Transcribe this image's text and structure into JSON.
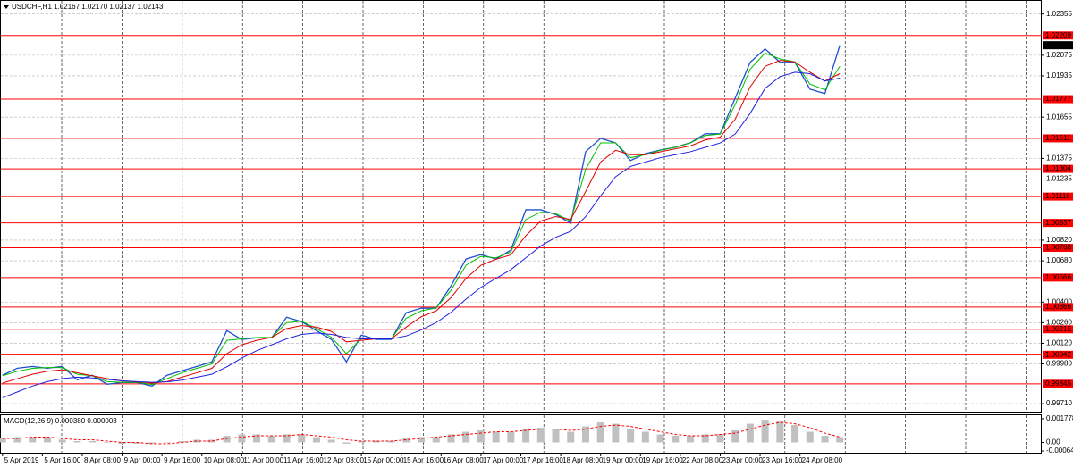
{
  "chart_data": [
    {
      "type": "line",
      "title": "USDCHF,H1  1.02167 1.02170 1.02137 1.02143",
      "x": [
        0,
        6,
        12,
        18,
        24,
        30,
        36,
        42,
        48,
        54,
        60,
        66,
        72,
        78,
        84,
        90,
        96,
        102,
        108,
        114,
        120,
        126,
        132,
        138,
        144,
        150,
        156,
        162,
        168,
        174,
        180,
        186,
        192,
        198,
        204,
        210,
        216,
        222,
        228,
        234,
        240,
        246,
        252,
        258,
        264,
        270,
        276,
        282,
        288,
        294,
        300,
        306,
        312,
        318,
        324,
        330,
        336
      ],
      "xlim": [
        -1,
        417
      ],
      "xticks": [
        {
          "value": 0,
          "label": "5 Apr 2019"
        },
        {
          "value": 16,
          "label": "5 Apr 16:00"
        },
        {
          "value": 32,
          "label": "8 Apr 08:00"
        },
        {
          "value": 48,
          "label": "9 Apr 00:00"
        },
        {
          "value": 64,
          "label": "9 Apr 16:00"
        },
        {
          "value": 80,
          "label": "10 Apr 08:00"
        },
        {
          "value": 96,
          "label": "11 Apr 00:00"
        },
        {
          "value": 112,
          "label": "11 Apr 16:00"
        },
        {
          "value": 128,
          "label": "12 Apr 08:00"
        },
        {
          "value": 144,
          "label": "15 Apr 00:00"
        },
        {
          "value": 160,
          "label": "15 Apr 16:00"
        },
        {
          "value": 176,
          "label": "16 Apr 08:00"
        },
        {
          "value": 192,
          "label": "17 Apr 00:00"
        },
        {
          "value": 208,
          "label": "17 Apr 16:00"
        },
        {
          "value": 224,
          "label": "18 Apr 08:00"
        },
        {
          "value": 240,
          "label": "19 Apr 00:00"
        },
        {
          "value": 256,
          "label": "19 Apr 16:00"
        },
        {
          "value": 272,
          "label": "22 Apr 08:00"
        },
        {
          "value": 288,
          "label": "23 Apr 00:00"
        },
        {
          "value": 304,
          "label": "23 Apr 16:00"
        },
        {
          "value": 320,
          "label": "24 Apr 08:00"
        }
      ],
      "ylim": [
        0.9965,
        1.0245
      ],
      "yticks": [
        1.02355,
        1.02075,
        1.01935,
        1.01655,
        1.01375,
        1.01235,
        {
          "value": 1.0082,
          "label": "1.00820"
        },
        {
          "value": 1.0068,
          "label": "1.00680"
        },
        {
          "value": 1.004,
          "label": "1.00400"
        },
        {
          "value": 1.0026,
          "label": "1.00260"
        },
        {
          "value": 1.0012,
          "label": "1.00120"
        },
        {
          "value": 0.9998,
          "label": "0.99980"
        },
        {
          "value": 0.9971,
          "label": "0.99710"
        }
      ],
      "grid": true,
      "series": [
        {
          "color": "#1f4fd0",
          "values": [
            0.99903,
            0.99951,
            0.99963,
            0.99951,
            0.99963,
            0.99872,
            0.99903,
            0.99842,
            0.99854,
            0.99854,
            0.9983,
            0.99903,
            0.99933,
            0.99963,
            0.99994,
            1.00206,
            1.00146,
            1.00158,
            1.00158,
            1.00297,
            1.00267,
            1.00206,
            1.00146,
            0.99994,
            1.00176,
            1.00146,
            1.00146,
            1.00328,
            1.00358,
            1.00358,
            1.0051,
            1.00692,
            1.00722,
            1.00692,
            1.00753,
            1.01026,
            1.01026,
            1.00995,
            1.00935,
            1.0142,
            1.01511,
            1.01481,
            1.0136,
            1.01408,
            1.01432,
            1.01451,
            1.01481,
            1.01542,
            1.01542,
            1.01784,
            1.02027,
            1.02118,
            1.02027,
            1.02027,
            1.01845,
            1.01815,
            1.02143
          ]
        },
        {
          "color": "#00c000",
          "values": [
            0.999,
            0.9993,
            0.9995,
            0.99955,
            0.99955,
            0.9991,
            0.999,
            0.9986,
            0.99855,
            0.99855,
            0.9984,
            0.9988,
            0.9992,
            0.9995,
            0.9998,
            1.0014,
            1.0015,
            1.0016,
            1.0016,
            1.0026,
            1.0027,
            1.0022,
            1.0016,
            1.0005,
            1.0015,
            1.0015,
            1.0015,
            1.0029,
            1.0034,
            1.0036,
            1.0048,
            1.0065,
            1.0071,
            1.007,
            1.0074,
            1.0096,
            1.0101,
            1.01,
            1.0095,
            1.013,
            1.0148,
            1.0148,
            1.0138,
            1.014,
            1.0143,
            1.0145,
            1.0148,
            1.0153,
            1.0154,
            1.0174,
            1.0198,
            1.0209,
            1.0205,
            1.0203,
            1.0188,
            1.0184,
            1.02
          ]
        },
        {
          "color": "#e00000",
          "values": [
            0.9985,
            0.9988,
            0.9991,
            0.9993,
            0.9994,
            0.9992,
            0.999,
            0.9988,
            0.99865,
            0.99858,
            0.9985,
            0.9986,
            0.9989,
            0.9992,
            0.9995,
            1.0005,
            1.0011,
            1.0014,
            1.0016,
            1.0022,
            1.0024,
            1.0023,
            1.002,
            1.0013,
            1.0014,
            1.0015,
            1.0015,
            1.0023,
            1.003,
            1.0034,
            1.0043,
            1.0056,
            1.0065,
            1.0069,
            1.0072,
            1.0085,
            1.0095,
            1.0098,
            1.0096,
            1.0115,
            1.0135,
            1.0143,
            1.014,
            1.014,
            1.0142,
            1.0144,
            1.0146,
            1.015,
            1.0152,
            1.0164,
            1.0186,
            1.02,
            1.0204,
            1.0203,
            1.0196,
            1.019,
            1.0195
          ]
        },
        {
          "color": "#2020e0",
          "values": [
            0.99751,
            0.9979,
            0.9983,
            0.9986,
            0.9988,
            0.9989,
            0.99885,
            0.99875,
            0.99865,
            0.9986,
            0.99855,
            0.99858,
            0.9987,
            0.9989,
            0.9991,
            0.9996,
            1.0002,
            1.0007,
            1.0011,
            1.0015,
            1.0018,
            1.0019,
            1.0018,
            1.0016,
            1.0015,
            1.0015,
            1.0015,
            1.0017,
            1.0021,
            1.0026,
            1.0033,
            1.0042,
            1.005,
            1.0056,
            1.0062,
            1.007,
            1.0078,
            1.0084,
            1.0088,
            1.0098,
            1.0112,
            1.0125,
            1.0132,
            1.0135,
            1.0138,
            1.014,
            1.0142,
            1.0145,
            1.0148,
            1.0154,
            1.0168,
            1.0185,
            1.0193,
            1.0196,
            1.0195,
            1.019,
            1.0192
          ]
        }
      ],
      "levels": {
        "color": "#ff0000",
        "values": [
          1.02209,
          1.01777,
          1.01511,
          1.01304,
          1.01116,
          1.00937,
          1.00768,
          1.00566,
          1.00366,
          1.00215,
          1.00042,
          0.99845
        ]
      },
      "current_price": 1.02143
    },
    {
      "type": "bar",
      "title": "MACD(12,26,9) 0.000380 0.000003",
      "x": [
        0,
        6,
        12,
        18,
        24,
        30,
        36,
        42,
        48,
        54,
        60,
        66,
        72,
        78,
        84,
        90,
        96,
        102,
        108,
        114,
        120,
        126,
        132,
        138,
        144,
        150,
        156,
        162,
        168,
        174,
        180,
        186,
        192,
        198,
        204,
        210,
        216,
        222,
        228,
        234,
        240,
        246,
        252,
        258,
        264,
        270,
        276,
        282,
        288,
        294,
        300,
        306,
        312,
        318,
        324,
        330,
        336
      ],
      "xlim": [
        -1,
        417
      ],
      "ylim": [
        -0.00084,
        0.00211
      ],
      "yticks": [
        0.001778,
        {
          "value": 0,
          "label": "0.00"
        },
        -0.000642
      ],
      "series": [
        {
          "color": "#c0c0c0",
          "values": [
            0.0003,
            0.0004,
            0.0004,
            0.0003,
            0.0002,
            0.0001,
            0.0001,
            0.0,
            -0.0001,
            -0.0001,
            -0.0001,
            0.0,
            0.0001,
            0.0002,
            0.0002,
            0.0005,
            0.0006,
            0.0006,
            0.0005,
            0.0006,
            0.0006,
            0.0004,
            0.0002,
            -0.0001,
            0.0001,
            0.0001,
            0.0001,
            0.0003,
            0.0004,
            0.0004,
            0.0006,
            0.0008,
            0.0009,
            0.0008,
            0.0008,
            0.001,
            0.0011,
            0.001,
            0.0008,
            0.0012,
            0.0015,
            0.0014,
            0.001,
            0.0008,
            0.0006,
            0.0005,
            0.0005,
            0.0006,
            0.0006,
            0.0009,
            0.0014,
            0.0017,
            0.0016,
            0.0013,
            0.0008,
            0.0005,
            0.0004
          ]
        },
        {
          "type": "line",
          "color": "#ff0000",
          "values": [
            0.0003,
            0.0003,
            0.0004,
            0.0004,
            0.0003,
            0.0002,
            0.0002,
            0.0001,
            0.0,
            0.0,
            -0.0001,
            -0.0001,
            0.0,
            0.0001,
            0.0001,
            0.0003,
            0.0004,
            0.0005,
            0.0005,
            0.0005,
            0.0006,
            0.0005,
            0.0004,
            0.0002,
            0.0001,
            0.0001,
            0.0001,
            0.0002,
            0.0003,
            0.0004,
            0.0005,
            0.0006,
            0.0007,
            0.0008,
            0.0008,
            0.0009,
            0.001,
            0.001,
            0.0009,
            0.001,
            0.0012,
            0.0013,
            0.0012,
            0.001,
            0.0008,
            0.0006,
            0.0005,
            0.0005,
            0.0006,
            0.0007,
            0.001,
            0.0013,
            0.0015,
            0.0014,
            0.0011,
            0.0007,
            0.0004
          ]
        }
      ]
    }
  ]
}
